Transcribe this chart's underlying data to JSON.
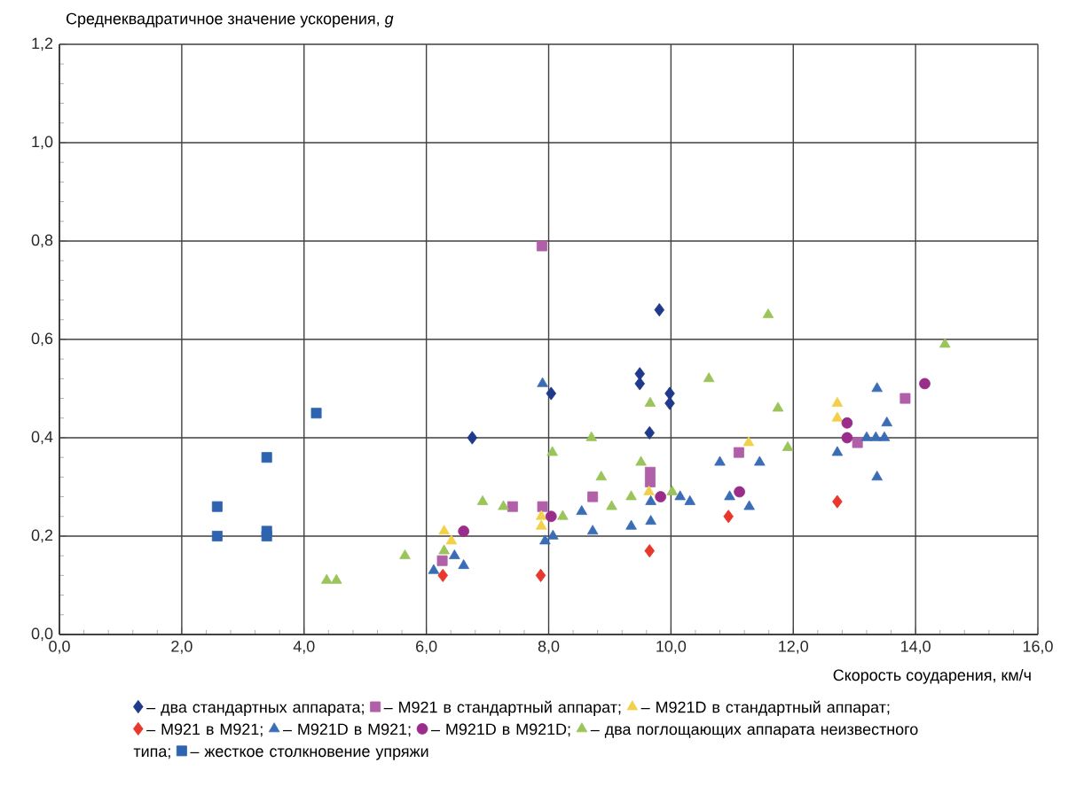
{
  "chart_data": {
    "type": "scatter",
    "ylabel": "Среднеквадратичное значение ускорения, *g*",
    "xlabel": "Скорость соударения, км/ч",
    "xlim": [
      0,
      16
    ],
    "ylim": [
      0,
      1.2
    ],
    "xticks": [
      {
        "value": 0,
        "label": "0,0"
      },
      {
        "value": 2,
        "label": "2,0"
      },
      {
        "value": 4,
        "label": "4,0"
      },
      {
        "value": 6,
        "label": "6,0"
      },
      {
        "value": 8,
        "label": "8,0"
      },
      {
        "value": 10,
        "label": "10,0"
      },
      {
        "value": 12,
        "label": "12,0"
      },
      {
        "value": 14,
        "label": "14,0"
      },
      {
        "value": 16,
        "label": "16,0"
      }
    ],
    "yticks": [
      {
        "value": 0,
        "label": "0,0"
      },
      {
        "value": 0.2,
        "label": "0,2"
      },
      {
        "value": 0.4,
        "label": "0,4"
      },
      {
        "value": 0.6,
        "label": "0,6"
      },
      {
        "value": 0.8,
        "label": "0,8"
      },
      {
        "value": 1.0,
        "label": "1,0"
      },
      {
        "value": 1.2,
        "label": "1,2"
      }
    ],
    "grid": true,
    "legend": "bottom",
    "series": [
      {
        "name": "– два стандартных аппарата;",
        "color": "#1f3a8a",
        "marker": "diamond",
        "x": [
          9.81,
          8.04,
          9.49,
          9.49,
          9.98,
          9.98,
          6.75,
          9.65
        ],
        "values": [
          0.66,
          0.49,
          0.53,
          0.51,
          0.49,
          0.47,
          0.4,
          0.41
        ]
      },
      {
        "name": "– M921 в стандартный аппарат;",
        "color": "#b05fa8",
        "marker": "square",
        "x": [
          7.89,
          9.66,
          9.66,
          8.72,
          7.41,
          7.9,
          6.26,
          13.83,
          13.05,
          11.11
        ],
        "values": [
          0.79,
          0.33,
          0.31,
          0.28,
          0.26,
          0.26,
          0.15,
          0.48,
          0.39,
          0.37
        ]
      },
      {
        "name": "– M921D в стандартный аппарат;",
        "color": "#f2d04b",
        "marker": "triangle",
        "x": [
          9.64,
          7.88,
          7.88,
          6.29,
          6.41,
          12.72,
          12.72,
          11.27
        ],
        "values": [
          0.29,
          0.24,
          0.22,
          0.21,
          0.19,
          0.47,
          0.44,
          0.39
        ]
      },
      {
        "name": "– M921 в M921;",
        "color": "#e8372c",
        "marker": "diamond",
        "x": [
          9.65,
          7.87,
          6.27,
          10.94,
          12.72
        ],
        "values": [
          0.17,
          0.12,
          0.12,
          0.24,
          0.27
        ]
      },
      {
        "name": "– M921D в M921;",
        "color": "#3a6db5",
        "marker": "triangle",
        "x": [
          7.9,
          9.67,
          8.54,
          8.72,
          9.35,
          9.67,
          7.94,
          8.07,
          6.46,
          6.12,
          6.61,
          13.37,
          13.53,
          13.2,
          13.35,
          13.49,
          11.45,
          10.8,
          12.72,
          13.37,
          10.96,
          11.28,
          10.15,
          10.31
        ],
        "values": [
          0.51,
          0.27,
          0.25,
          0.21,
          0.22,
          0.23,
          0.19,
          0.2,
          0.16,
          0.13,
          0.14,
          0.5,
          0.43,
          0.4,
          0.4,
          0.4,
          0.35,
          0.35,
          0.37,
          0.32,
          0.28,
          0.26,
          0.28,
          0.27
        ]
      },
      {
        "name": "– M921D в M921D;",
        "color": "#9b2d8a",
        "marker": "circle",
        "x": [
          9.83,
          8.04,
          6.61,
          14.15,
          12.88,
          12.88,
          11.12
        ],
        "values": [
          0.28,
          0.24,
          0.21,
          0.51,
          0.43,
          0.4,
          0.29
        ]
      },
      {
        "name": "– два поглощающих аппарата неизвестного типа;",
        "color": "#9bc45a",
        "marker": "triangle",
        "x": [
          4.37,
          4.53,
          5.65,
          9.66,
          8.7,
          8.06,
          9.51,
          8.86,
          9.35,
          9.03,
          6.92,
          7.26,
          8.23,
          6.29,
          11.59,
          14.48,
          10.62,
          11.75,
          11.91,
          10.02
        ],
        "values": [
          0.11,
          0.11,
          0.16,
          0.47,
          0.4,
          0.37,
          0.35,
          0.32,
          0.28,
          0.26,
          0.27,
          0.26,
          0.24,
          0.17,
          0.65,
          0.59,
          0.52,
          0.46,
          0.38,
          0.29
        ]
      },
      {
        "name": "– жесткое столкновение упряжи",
        "color": "#2e63b0",
        "marker": "square",
        "x": [
          4.2,
          3.39,
          2.58,
          2.58,
          3.39,
          3.39
        ],
        "values": [
          0.45,
          0.36,
          0.26,
          0.2,
          0.21,
          0.2
        ]
      }
    ]
  }
}
